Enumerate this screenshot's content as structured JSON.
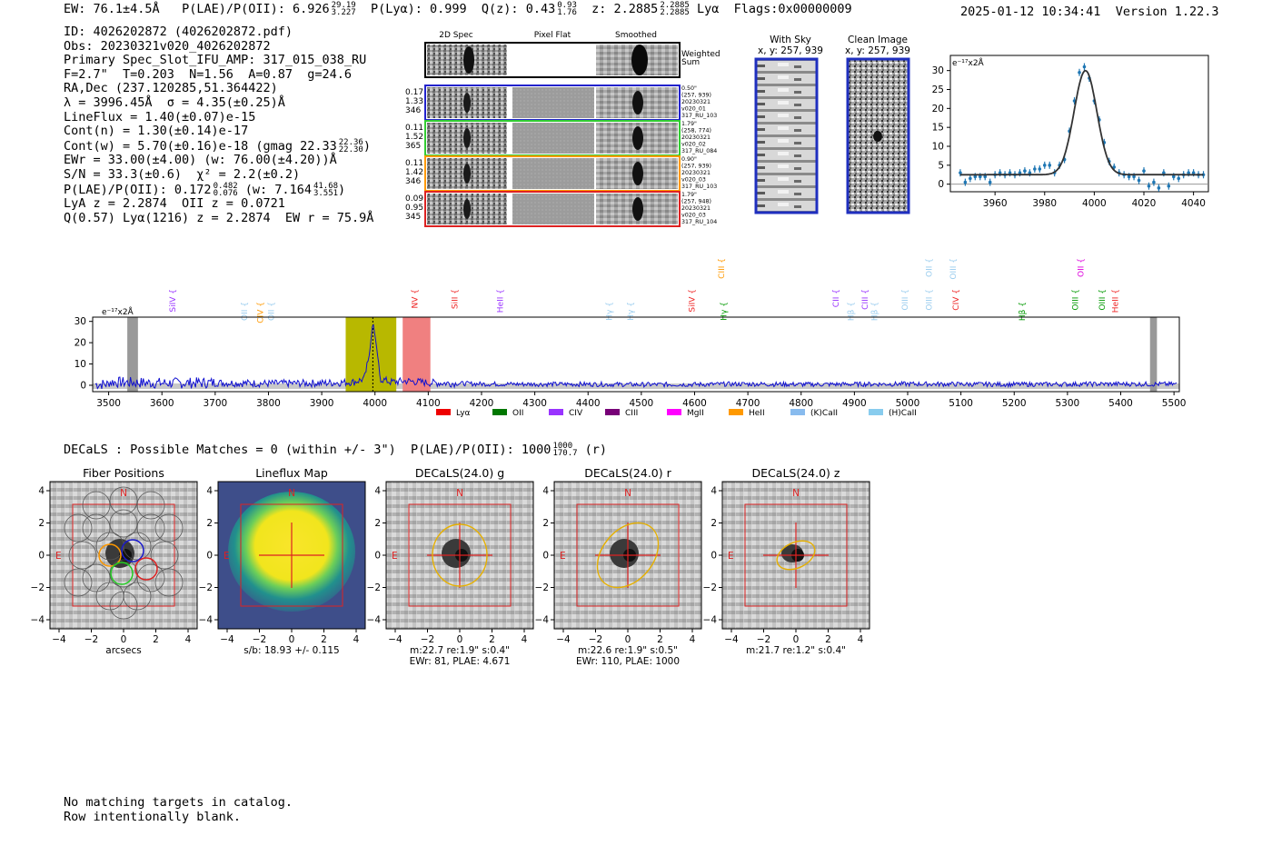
{
  "header": {
    "ew": "EW: 76.1±4.5Å",
    "plae": "P(LAE)/P(OII): 6.926",
    "plae_hi": "29.19",
    "plae_lo": "3.227",
    "plya": "P(Lyα): 0.999",
    "qz": "Q(z): 0.43",
    "qz_hi": "0.93",
    "qz_lo": "1.76",
    "z": "z: 2.2885",
    "z_hi": "2.2885",
    "z_lo": "2.2885",
    "line": "Lyα",
    "flags": "Flags:0x00000009",
    "timestamp": "2025-01-12 10:34:41",
    "version": "Version 1.22.3"
  },
  "info": {
    "id": "ID: 4026202872 (4026202872.pdf)",
    "obs": "Obs: 20230321v020_4026202872",
    "primary": "Primary Spec_Slot_IFU_AMP: 317_015_038_RU",
    "fparams": "F=2.7\"  T=0.203  N=1.56  A=0.87  g=24.6",
    "radec": "RA,Dec (237.120285,51.364422)",
    "lambda_sigma": "λ = 3996.45Å  σ = 4.35(±0.25)Å",
    "lineflux": "LineFlux = 1.40(±0.07)e-15",
    "contn": "Cont(n) = 1.30(±0.14)e-17",
    "contw": "Cont(w) = 5.70(±0.16)e-18 (gmag 22.33",
    "contw_hi": "22.36",
    "contw_lo": "22.30",
    "ewr": "EWr = 33.00(±4.00) (w: 76.00(±4.20))Å",
    "sn": "S/N = 33.3(±0.6)  χ² = 2.2(±0.2)",
    "plae": "P(LAE)/P(OII): 0.172",
    "plae_hi": "0.482",
    "plae_lo": "0.076",
    "plae_w": "(w: 7.164",
    "plae_w_hi": "41.68",
    "plae_w_lo": "3.551",
    "lya_z": "LyA z = 2.2874  OII z = 0.0721",
    "q": "Q(0.57) Lyα(1216) z = 2.2874  EW r = 75.9Å"
  },
  "cutouts": {
    "col_labels": [
      "2D Spec",
      "Pixel Flat",
      "Smoothed"
    ],
    "weighted_label": "Weighted Sum",
    "rows": [
      {
        "weights": [
          "0.17",
          "1.33",
          "346"
        ],
        "meta": [
          "0.50\"",
          "(257, 939)",
          "20230321",
          "v020_01",
          "317_RU_103"
        ],
        "color": "#2222cc"
      },
      {
        "weights": [
          "0.11",
          "1.52",
          "365"
        ],
        "meta": [
          "1.79\"",
          "(258, 774)",
          "20230321",
          "v020_02",
          "317_RU_084"
        ],
        "color": "#33cc33"
      },
      {
        "weights": [
          "0.11",
          "1.42",
          "346"
        ],
        "meta": [
          "0.90\"",
          "(257, 939)",
          "20230321",
          "v020_03",
          "317_RU_103"
        ],
        "color": "#ff9900"
      },
      {
        "weights": [
          "0.09",
          "0.95",
          "345"
        ],
        "meta": [
          "1.79\"",
          "(257, 948)",
          "20230321",
          "v020_03",
          "317_RU_104"
        ],
        "color": "#dd2222"
      }
    ]
  },
  "sky_panels": {
    "with_sky": "With Sky",
    "with_sky_xy": "x, y: 257, 939",
    "clean": "Clean Image",
    "clean_xy": "x, y: 257, 939"
  },
  "fit_plot": {
    "unit_label": "e⁻¹⁷x2Å",
    "x_ticks": [
      "3960",
      "3980",
      "4000",
      "4020",
      "4040"
    ],
    "y_ticks": [
      "0",
      "5",
      "10",
      "15",
      "20",
      "25",
      "30"
    ]
  },
  "spectrum": {
    "unit_label": "e⁻¹⁷x2Å",
    "x_ticks": [
      "3500",
      "3600",
      "3700",
      "3800",
      "3900",
      "4000",
      "4100",
      "4200",
      "4300",
      "4400",
      "4500",
      "4600",
      "4700",
      "4800",
      "4900",
      "5000",
      "5100",
      "5200",
      "5300",
      "5400",
      "5500"
    ],
    "y_ticks": [
      "0",
      "10",
      "20",
      "30"
    ],
    "line_marks": [
      {
        "label": "SiIV",
        "color": "#9933ff",
        "wave": 3620,
        "row": 2
      },
      {
        "label": "OII",
        "color": "#99ccee",
        "wave": 3755,
        "row": 3
      },
      {
        "label": "CIV",
        "color": "#ff9900",
        "wave": 3785,
        "row": 3
      },
      {
        "label": "OII",
        "color": "#99ccee",
        "wave": 3805,
        "row": 3
      },
      {
        "label": "NV",
        "color": "#ee2222",
        "wave": 4075,
        "row": 2
      },
      {
        "label": "SiII",
        "color": "#ee2222",
        "wave": 4150,
        "row": 2
      },
      {
        "label": "HeII",
        "color": "#9933ff",
        "wave": 4235,
        "row": 2
      },
      {
        "label": "Hγ",
        "color": "#99ccee",
        "wave": 4440,
        "row": 3
      },
      {
        "label": "Hγ",
        "color": "#99ccee",
        "wave": 4480,
        "row": 3
      },
      {
        "label": "SiIV",
        "color": "#ee2222",
        "wave": 4595,
        "row": 2
      },
      {
        "label": "CIII",
        "color": "#ff9900",
        "wave": 4650,
        "row": 0
      },
      {
        "label": "Hγ",
        "color": "#009900",
        "wave": 4655,
        "row": 3
      },
      {
        "label": "CII",
        "color": "#9933ff",
        "wave": 4865,
        "row": 2
      },
      {
        "label": "Hβ",
        "color": "#99ccee",
        "wave": 4893,
        "row": 3
      },
      {
        "label": "CIII",
        "color": "#9933ff",
        "wave": 4920,
        "row": 2
      },
      {
        "label": "Hβ",
        "color": "#99ccee",
        "wave": 4938,
        "row": 3
      },
      {
        "label": "OIII",
        "color": "#99ccee",
        "wave": 4995,
        "row": 2
      },
      {
        "label": "OII",
        "color": "#99ccee",
        "wave": 5040,
        "row": 0
      },
      {
        "label": "OIII",
        "color": "#99ccee",
        "wave": 5040,
        "row": 2
      },
      {
        "label": "OIII",
        "color": "#99ccee",
        "wave": 5085,
        "row": 0
      },
      {
        "label": "CIV",
        "color": "#ee2222",
        "wave": 5090,
        "row": 2
      },
      {
        "label": "Hβ",
        "color": "#009900",
        "wave": 5215,
        "row": 3
      },
      {
        "label": "OII",
        "color": "#dd00dd",
        "wave": 5325,
        "row": 0
      },
      {
        "label": "OIII",
        "color": "#009900",
        "wave": 5315,
        "row": 2
      },
      {
        "label": "OIII",
        "color": "#009900",
        "wave": 5365,
        "row": 2
      },
      {
        "label": "HeII",
        "color": "#ee2222",
        "wave": 5390,
        "row": 2
      }
    ],
    "legend": [
      {
        "label": "Lyα",
        "color": "#ee0000"
      },
      {
        "label": "OII",
        "color": "#007700"
      },
      {
        "label": "CIV",
        "color": "#9933ff"
      },
      {
        "label": "CIII",
        "color": "#770077"
      },
      {
        "label": "MgII",
        "color": "#ff00ff"
      },
      {
        "label": "HeII",
        "color": "#ff9900"
      },
      {
        "label": "(K)CaII",
        "color": "#88bbee"
      },
      {
        "label": "(H)CaII",
        "color": "#88ccee"
      }
    ]
  },
  "decals_line": "DECaLS : Possible Matches = 0 (within +/- 3\")  P(LAE)/P(OII): 1000",
  "decals_hi": "1000",
  "decals_lo": "170.7",
  "decals_suffix": "(r)",
  "stamps": [
    {
      "title": "Fiber Positions",
      "caption": [
        "arcsecs"
      ]
    },
    {
      "title": "Lineflux Map",
      "caption": [
        "s/b: 18.93 +/- 0.115"
      ]
    },
    {
      "title": "DECaLS(24.0) g",
      "caption": [
        "m:22.7  re:1.9\"  s:0.4\"",
        "EWr: 81, PLAE: 4.671"
      ]
    },
    {
      "title": "DECaLS(24.0) r",
      "caption": [
        "m:22.6  re:1.9\"  s:0.5\"",
        "EWr: 110, PLAE: 1000"
      ]
    },
    {
      "title": "DECaLS(24.0) z",
      "caption": [
        "m:21.7  re:1.2\"  s:0.4\""
      ]
    }
  ],
  "stamp_axis": {
    "ticks": [
      "−4",
      "−2",
      "0",
      "2",
      "4"
    ],
    "north": "N",
    "east": "E"
  },
  "footer": [
    "No matching targets in catalog.",
    "Row intentionally blank."
  ],
  "chart_data": [
    {
      "type": "line",
      "title": "",
      "xlabel": "",
      "ylabel": "e⁻¹⁷x2Å",
      "xlim": [
        3470,
        5510
      ],
      "ylim": [
        -3,
        32
      ],
      "series": [
        {
          "x": [
            3500,
            3600,
            3700,
            3800,
            3900,
            3960,
            3980,
            3990,
            3996,
            4002,
            4010,
            4030,
            4060,
            4100,
            4200,
            4300,
            4400,
            4500,
            4600,
            4700,
            4800,
            4900,
            5000,
            5100,
            5200,
            5300,
            5400,
            5500
          ],
          "y": [
            1.5,
            1,
            1.2,
            0.8,
            1,
            1.5,
            3,
            15,
            30,
            20,
            3,
            1.5,
            2,
            1.2,
            0.6,
            0.5,
            0.5,
            0.3,
            0.4,
            0.6,
            0.4,
            0.5,
            0.6,
            0.5,
            0.4,
            0.5,
            0.6,
            0.5
          ]
        }
      ]
    },
    {
      "type": "scatter",
      "title": "",
      "xlabel": "",
      "ylabel": "e⁻¹⁷x2Å",
      "xlim": [
        3942,
        4046
      ],
      "ylim": [
        -2,
        34
      ],
      "series": [
        {
          "x": [
            3946,
            3948,
            3950,
            3952,
            3954,
            3956,
            3958,
            3960,
            3962,
            3964,
            3966,
            3968,
            3970,
            3972,
            3974,
            3976,
            3978,
            3980,
            3982,
            3984,
            3986,
            3988,
            3990,
            3992,
            3994,
            3996,
            3998,
            4000,
            4002,
            4004,
            4006,
            4008,
            4010,
            4012,
            4014,
            4016,
            4018,
            4020,
            4022,
            4024,
            4026,
            4028,
            4030,
            4032,
            4034,
            4036,
            4038,
            4040,
            4042,
            4044
          ],
          "y": [
            3,
            0.5,
            1.5,
            2,
            2,
            2,
            0.5,
            2.5,
            3,
            2.5,
            3,
            2.5,
            3,
            3.5,
            3,
            4,
            4,
            5,
            5,
            3,
            5,
            6.5,
            14,
            22,
            29.5,
            31,
            28,
            22,
            17,
            11,
            6,
            4.5,
            3,
            2.5,
            2,
            2,
            1,
            3.5,
            -0.5,
            0.5,
            -1,
            3,
            -0.5,
            2,
            1.5,
            2.5,
            3,
            3,
            2.5,
            2.5
          ]
        }
      ]
    }
  ]
}
